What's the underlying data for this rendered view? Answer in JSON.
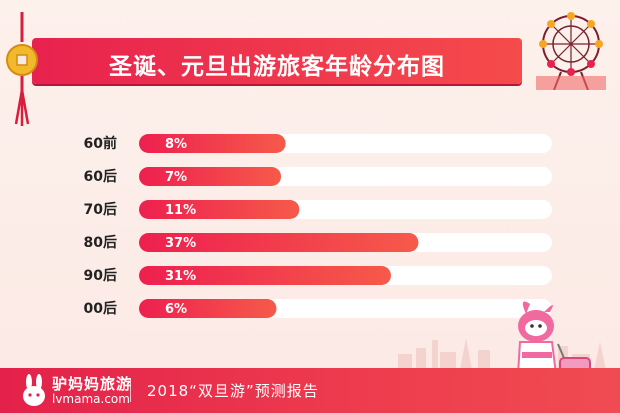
{
  "colors": {
    "accent": "#e8224e",
    "bar_start": "#ee1f4f",
    "bar_end": "#f65a4a",
    "track": "#ffffff",
    "category_text": "#222222",
    "label_text": "#ffffff"
  },
  "icons": [
    "coin-pendant-icon",
    "ferris-wheel-icon",
    "rabbit-logo-icon",
    "mascot-traveler-icon",
    "city-skyline-icon"
  ],
  "chart_data": {
    "type": "bar",
    "orientation": "horizontal",
    "title": "圣诞、元旦出游旅客年龄分布图",
    "categories": [
      "60前",
      "60后",
      "70后",
      "80后",
      "90后",
      "00后"
    ],
    "values": [
      8,
      7,
      11,
      37,
      31,
      6
    ],
    "value_labels": [
      "8%",
      "7%",
      "11%",
      "37%",
      "31%",
      "6%"
    ],
    "xlim": [
      0,
      100
    ],
    "grid": false,
    "legend": "none"
  },
  "footer": {
    "brand_name": "驴妈妈旅游",
    "brand_url": "lvmama.com",
    "report_title": "2018“双旦游”预测报告"
  }
}
